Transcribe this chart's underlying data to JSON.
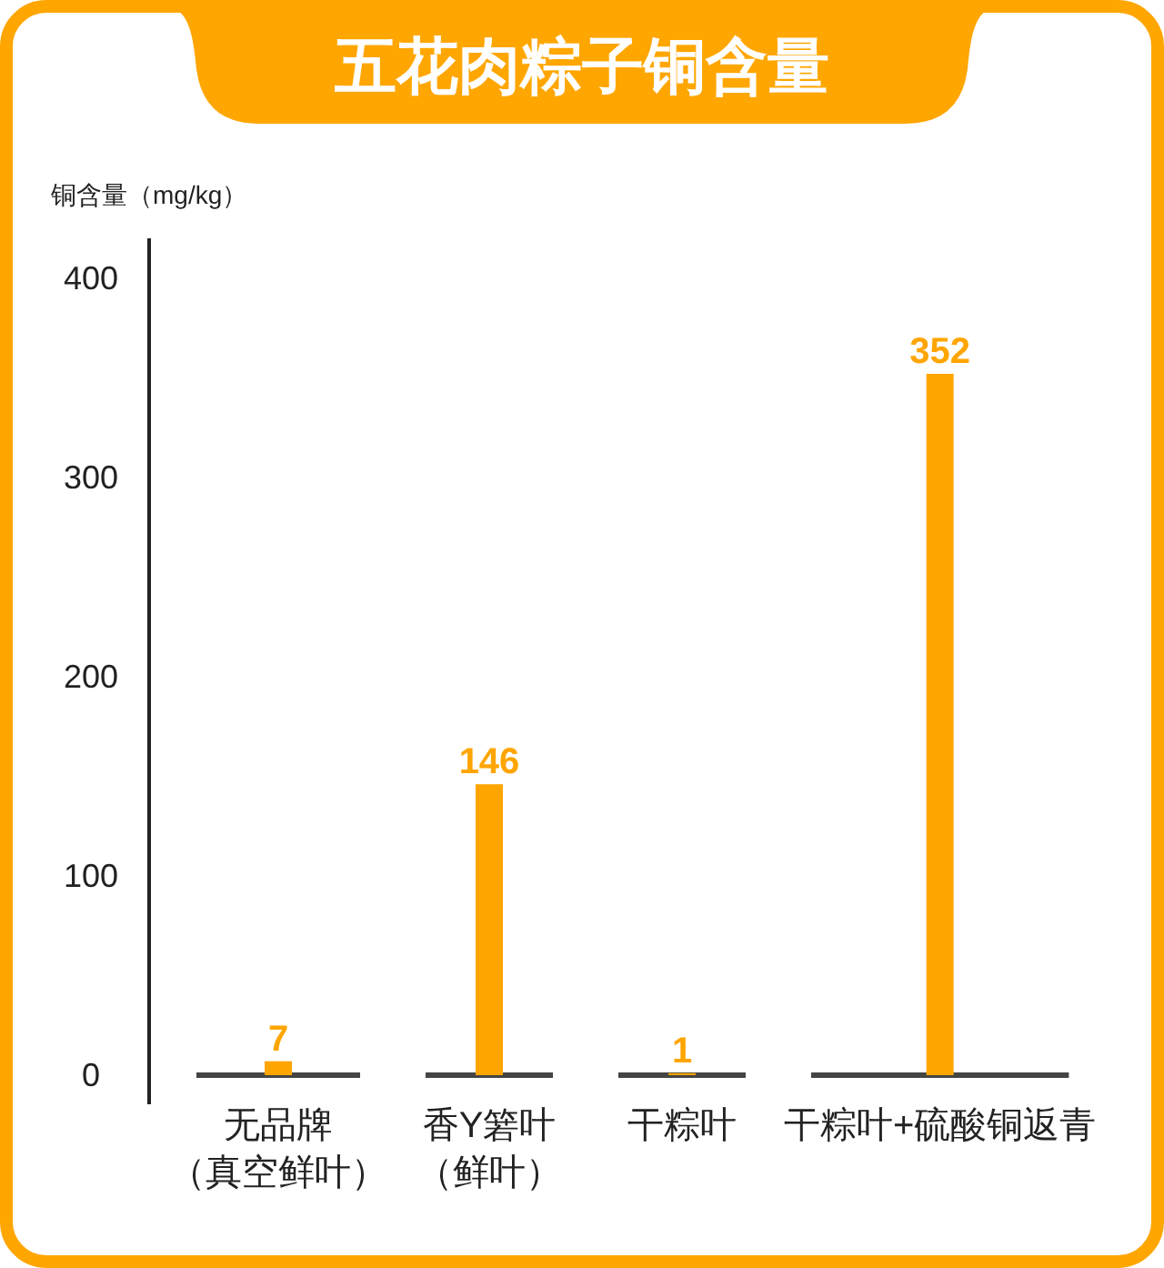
{
  "chart_data": {
    "type": "bar",
    "title": "五花肉粽子铜含量",
    "ylabel": "铜含量（mg/kg）",
    "categories": [
      "无品牌（真空鲜叶）",
      "香Y箬叶（鲜叶）",
      "干粽叶",
      "干粽叶+硫酸铜返青"
    ],
    "values": [
      7,
      146,
      1,
      352
    ],
    "color": "#ffa500",
    "ylim": [
      0,
      420
    ],
    "yticks": [
      0,
      100,
      200,
      300,
      400
    ],
    "data_labels": true
  }
}
